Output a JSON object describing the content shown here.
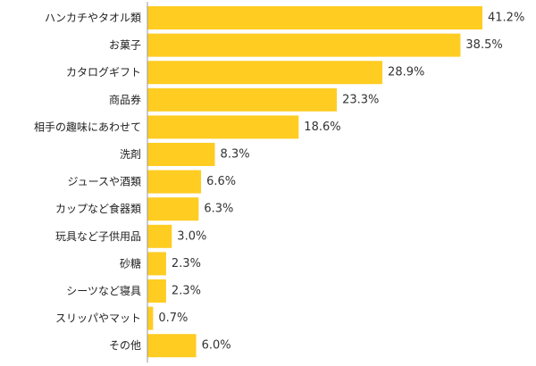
{
  "chart_data": {
    "type": "bar",
    "orientation": "horizontal",
    "categories": [
      "ハンカチやタオル類",
      "お菓子",
      "カタログギフト",
      "商品券",
      "相手の趣味にあわせて",
      "洗剤",
      "ジュースや酒類",
      "カップなど食器類",
      "玩具など子供用品",
      "砂糖",
      "シーツなど寝具",
      "スリッパやマット",
      "その他"
    ],
    "values": [
      41.2,
      38.5,
      28.9,
      23.3,
      18.6,
      8.3,
      6.6,
      6.3,
      3.0,
      2.3,
      2.3,
      0.7,
      6.0
    ],
    "value_labels": [
      "41.2%",
      "38.5%",
      "28.9%",
      "23.3%",
      "18.6%",
      "8.3%",
      "6.6%",
      "6.3%",
      "3.0%",
      "2.3%",
      "2.3%",
      "0.7%",
      "6.0%"
    ],
    "xlim": [
      0,
      41.2
    ],
    "grid": false,
    "legend": "none",
    "title": "",
    "xlabel": "",
    "ylabel": ""
  },
  "colors": {
    "bar": "#FFCC22",
    "axis": "#999999",
    "text": "#222222"
  }
}
